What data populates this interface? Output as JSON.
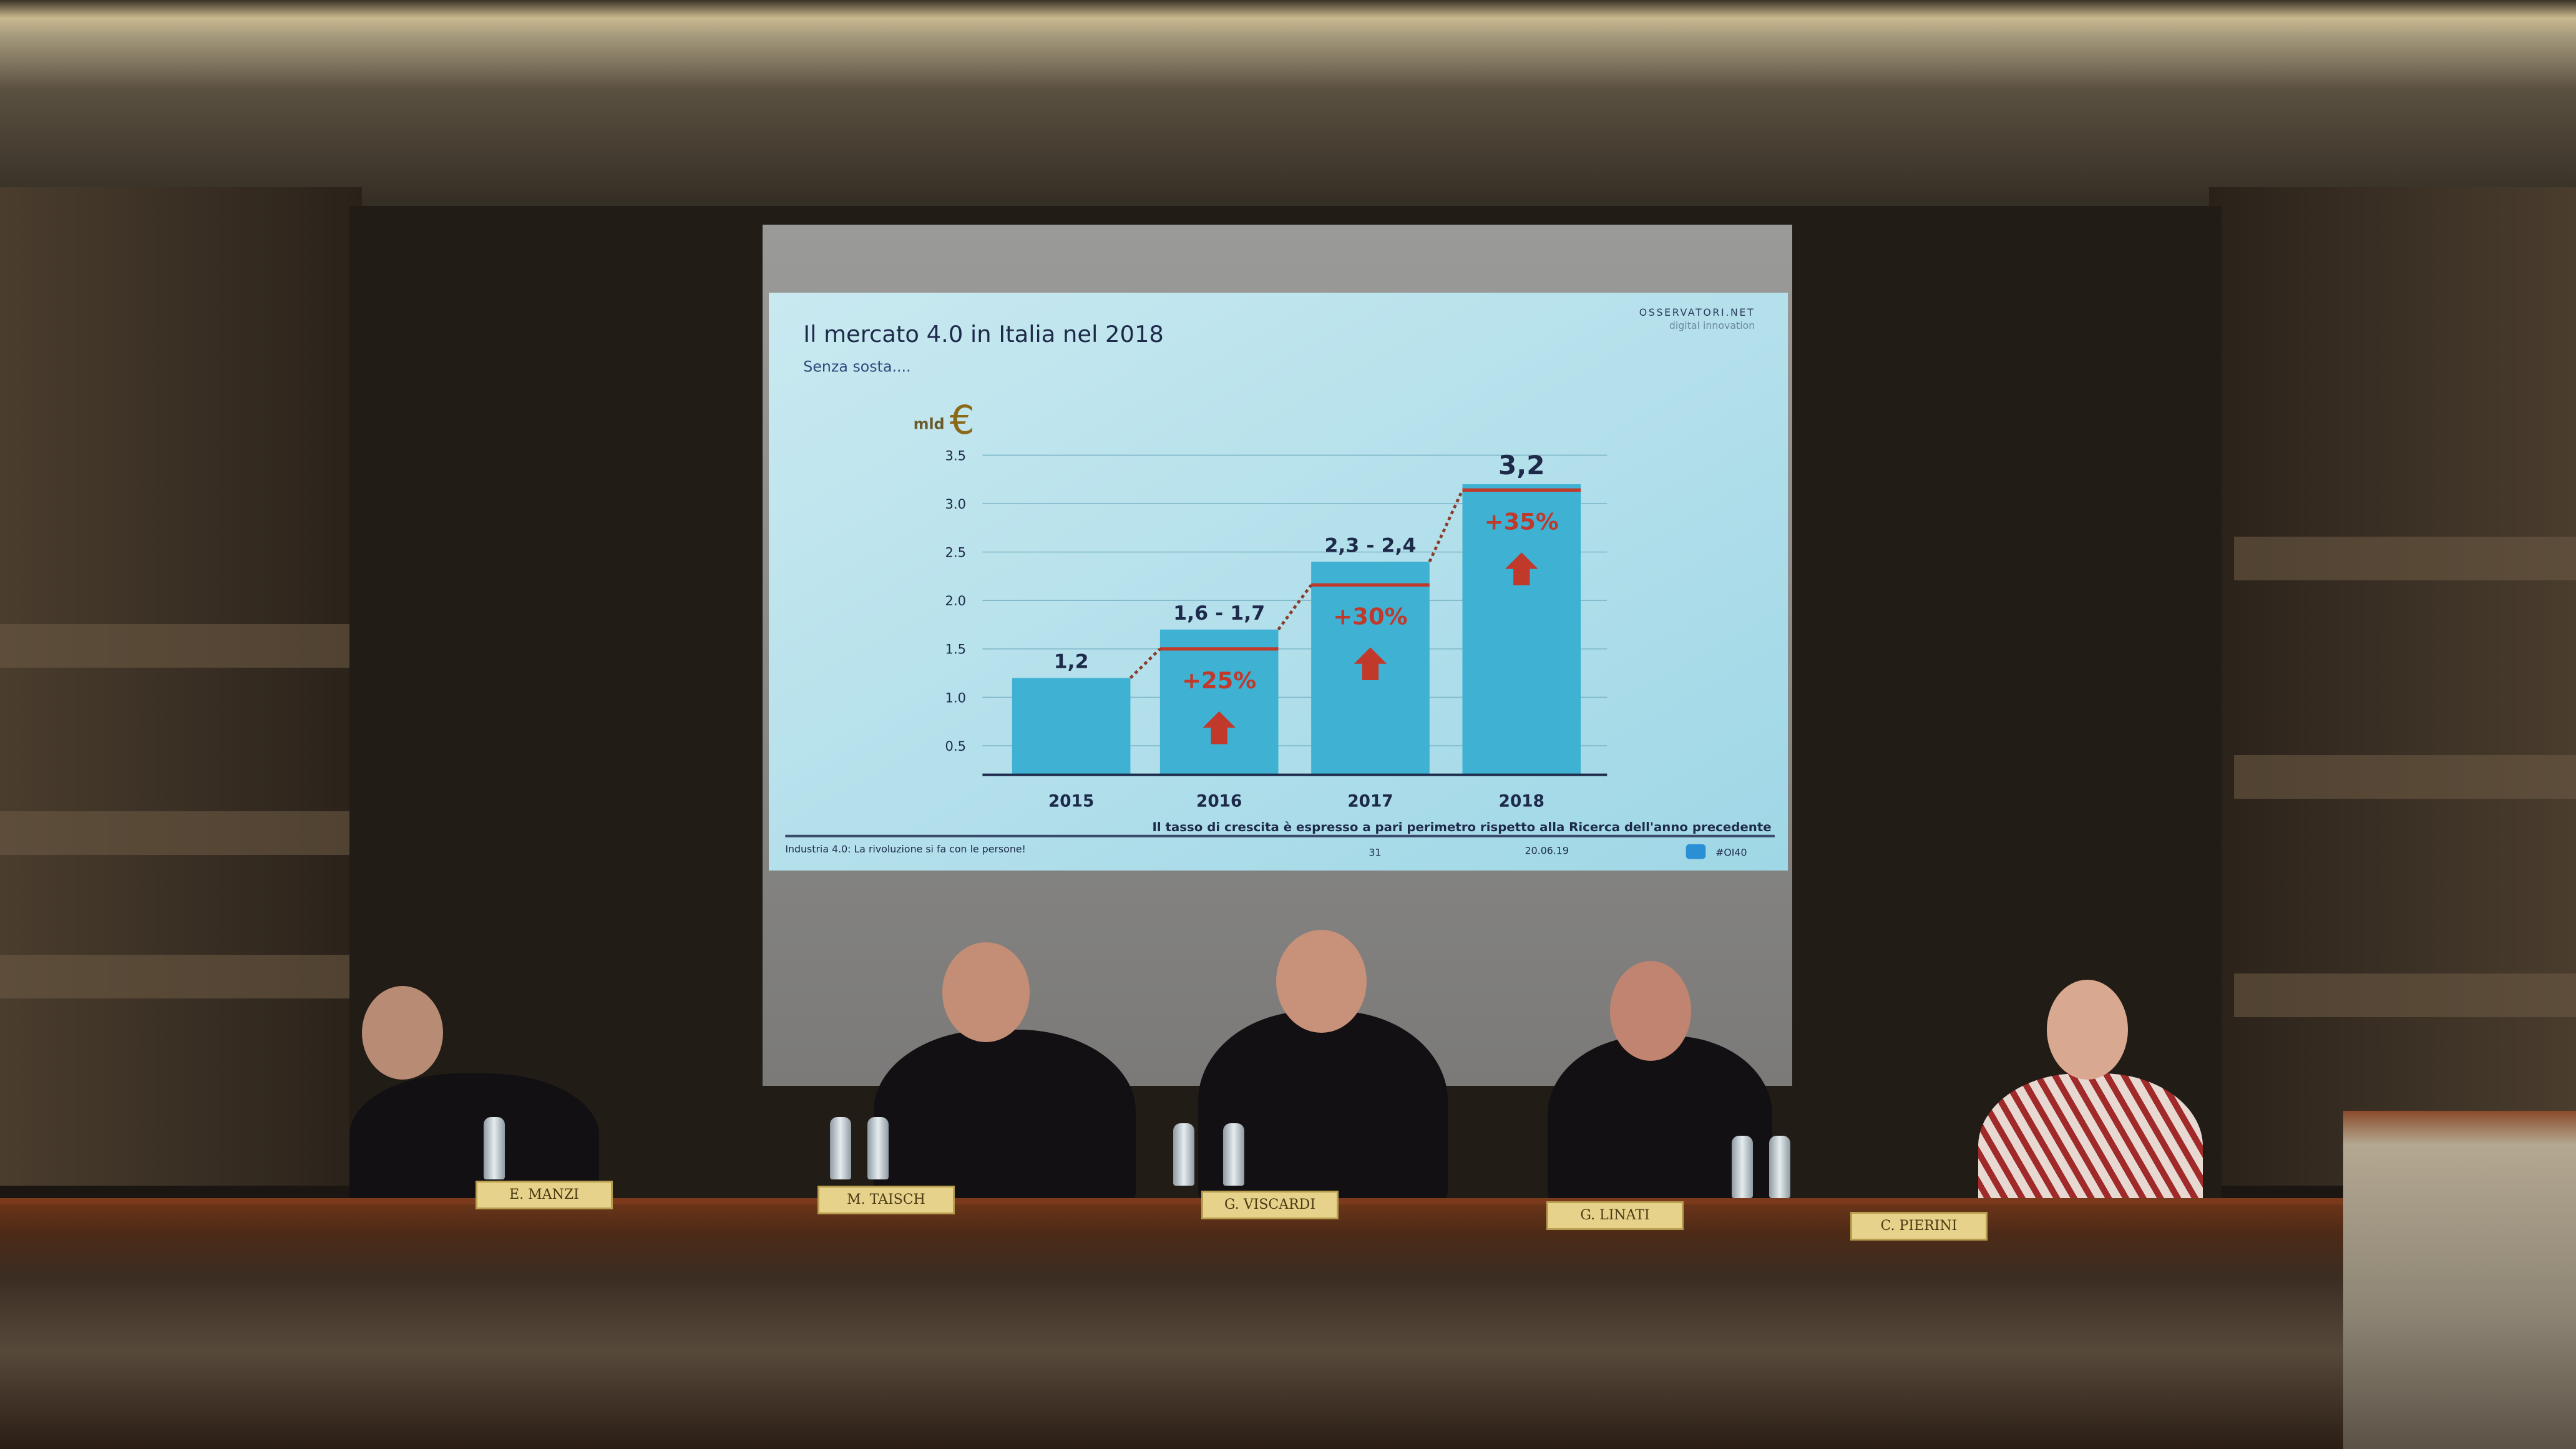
{
  "slide": {
    "title": "Il mercato 4.0 in Italia nel 2018",
    "subtitle": "Senza sosta....",
    "logo_text": "OSSERVATORI.NET",
    "logo_subtext": "digital innovation",
    "unit_label": "mld",
    "unit_symbol": "€",
    "footnote": "Il tasso di crescita è espresso a pari perimetro rispetto alla Ricerca dell'anno precedente",
    "footer": {
      "event": "Industria 4.0: La rivoluzione si fa con le persone!",
      "page": "31",
      "date": "20.06.19",
      "hashtag": "#OI40",
      "icon": "twitter-icon"
    }
  },
  "chart_data": {
    "type": "bar",
    "title": "Il mercato 4.0 in Italia nel 2018",
    "subtitle": "Senza sosta....",
    "ylabel": "mld €",
    "categories": [
      "2015",
      "2016",
      "2017",
      "2018"
    ],
    "values": [
      1.2,
      1.7,
      2.4,
      3.2
    ],
    "value_labels": [
      "1,2",
      "1,6 - 1,7",
      "2,3 - 2,4",
      "3,2"
    ],
    "growth_labels": [
      "",
      "+25%",
      "+30%",
      "+35%"
    ],
    "growth_marker_values": [
      null,
      1.5,
      2.16,
      3.14
    ],
    "yticks": [
      "0.5",
      "1.0",
      "1.5",
      "2.0",
      "2.5",
      "3.0",
      "3.5"
    ],
    "ylim": [
      0.2,
      3.5
    ],
    "grid": true,
    "colors": {
      "bar": "#3fb1d3",
      "growth": "#c0392b",
      "text": "#1e2a4a",
      "background": "#a9dbe8"
    }
  },
  "panel": {
    "nameplates": [
      "E. MANZI",
      "M. TAISCH",
      "G. VISCARDI",
      "G. LINATI",
      "C. PIERINI"
    ]
  }
}
